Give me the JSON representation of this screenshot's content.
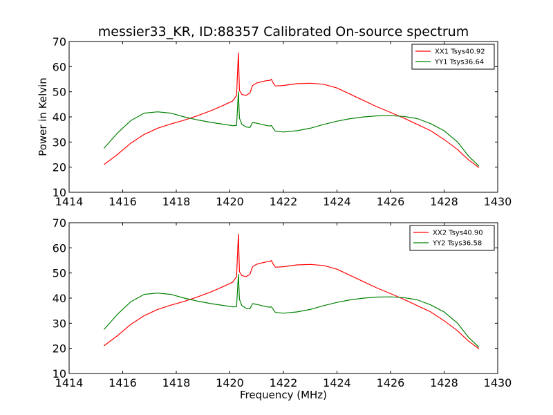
{
  "figure_title": "messier33_KR, ID:88357 Calibrated On-source spectrum",
  "chart_data": [
    {
      "type": "line",
      "title": "messier33_KR, ID:88357 Calibrated On-source spectrum",
      "xlabel": "",
      "ylabel": "Power in Kelvin",
      "xlim": [
        1414,
        1430
      ],
      "ylim": [
        10,
        70
      ],
      "xticks": [
        "1414",
        "1416",
        "1418",
        "1420",
        "1422",
        "1424",
        "1426",
        "1428",
        "1430"
      ],
      "yticks": [
        "10",
        "20",
        "30",
        "40",
        "50",
        "60",
        "70"
      ],
      "grid": false,
      "legend_position": "top-right",
      "series": [
        {
          "name": "XX1 Tsys40.92",
          "color": "#ff0000",
          "x": [
            1415.3,
            1415.8,
            1416.3,
            1416.8,
            1417.3,
            1417.8,
            1418.3,
            1418.8,
            1419.3,
            1419.8,
            1420.1,
            1420.25,
            1420.32,
            1420.36,
            1420.45,
            1420.6,
            1420.75,
            1420.85,
            1421.0,
            1421.2,
            1421.4,
            1421.5,
            1421.55,
            1421.62,
            1421.7,
            1422.0,
            1422.5,
            1423.0,
            1423.5,
            1424.0,
            1424.5,
            1425.0,
            1425.5,
            1426.0,
            1426.5,
            1427.0,
            1427.5,
            1428.0,
            1428.5,
            1428.9,
            1429.3
          ],
          "y": [
            21.0,
            25.0,
            29.5,
            33.0,
            35.5,
            37.2,
            38.7,
            40.5,
            42.5,
            44.8,
            46.3,
            48.5,
            65.5,
            50.5,
            49.0,
            48.5,
            49.5,
            52.5,
            53.5,
            54.0,
            54.5,
            54.5,
            55.0,
            53.5,
            52.3,
            52.5,
            53.2,
            53.4,
            53.0,
            51.5,
            49.0,
            46.5,
            44.0,
            41.8,
            39.5,
            37.0,
            34.5,
            31.0,
            27.0,
            23.0,
            19.8
          ]
        },
        {
          "name": "YY1 Tsys36.64",
          "color": "#008000",
          "x": [
            1415.3,
            1415.8,
            1416.3,
            1416.8,
            1417.3,
            1417.8,
            1418.3,
            1418.8,
            1419.3,
            1419.8,
            1420.1,
            1420.25,
            1420.32,
            1420.36,
            1420.45,
            1420.6,
            1420.75,
            1420.85,
            1421.0,
            1421.2,
            1421.4,
            1421.5,
            1421.55,
            1421.62,
            1421.7,
            1422.0,
            1422.5,
            1423.0,
            1423.5,
            1424.0,
            1424.5,
            1425.0,
            1425.5,
            1426.0,
            1426.5,
            1427.0,
            1427.5,
            1428.0,
            1428.5,
            1428.9,
            1429.3
          ],
          "y": [
            27.5,
            33.5,
            38.5,
            41.5,
            42.0,
            41.5,
            40.0,
            38.8,
            37.8,
            37.0,
            36.5,
            36.6,
            50.0,
            39.5,
            37.0,
            36.0,
            35.8,
            37.8,
            37.5,
            37.0,
            36.5,
            36.4,
            36.6,
            35.5,
            34.3,
            34.0,
            34.5,
            35.5,
            37.0,
            38.3,
            39.3,
            40.0,
            40.4,
            40.5,
            40.2,
            39.3,
            37.3,
            34.5,
            30.0,
            24.5,
            20.4
          ]
        }
      ]
    },
    {
      "type": "line",
      "title": "",
      "xlabel": "Frequency (MHz)",
      "ylabel": "",
      "xlim": [
        1414,
        1430
      ],
      "ylim": [
        10,
        70
      ],
      "xticks": [
        "1414",
        "1416",
        "1418",
        "1420",
        "1422",
        "1424",
        "1426",
        "1428",
        "1430"
      ],
      "yticks": [
        "10",
        "20",
        "30",
        "40",
        "50",
        "60",
        "70"
      ],
      "grid": false,
      "legend_position": "top-right",
      "series": [
        {
          "name": "XX2 Tsys40.90",
          "color": "#ff0000",
          "x": [
            1415.3,
            1415.8,
            1416.3,
            1416.8,
            1417.3,
            1417.8,
            1418.3,
            1418.8,
            1419.3,
            1419.8,
            1420.1,
            1420.25,
            1420.32,
            1420.36,
            1420.45,
            1420.6,
            1420.75,
            1420.85,
            1421.0,
            1421.2,
            1421.4,
            1421.5,
            1421.55,
            1421.62,
            1421.7,
            1422.0,
            1422.5,
            1423.0,
            1423.5,
            1424.0,
            1424.5,
            1425.0,
            1425.5,
            1426.0,
            1426.5,
            1427.0,
            1427.5,
            1428.0,
            1428.5,
            1428.9,
            1429.3
          ],
          "y": [
            21.0,
            25.0,
            29.5,
            33.0,
            35.5,
            37.2,
            38.7,
            40.5,
            42.5,
            44.8,
            46.3,
            48.5,
            65.5,
            50.5,
            49.0,
            48.5,
            49.5,
            52.5,
            53.5,
            54.0,
            54.5,
            54.5,
            55.0,
            53.5,
            52.3,
            52.5,
            53.2,
            53.4,
            53.0,
            51.5,
            49.0,
            46.5,
            44.0,
            41.8,
            39.5,
            37.0,
            34.5,
            31.0,
            27.0,
            23.0,
            19.8
          ]
        },
        {
          "name": "YY2 Tsys36.58",
          "color": "#008000",
          "x": [
            1415.3,
            1415.8,
            1416.3,
            1416.8,
            1417.3,
            1417.8,
            1418.3,
            1418.8,
            1419.3,
            1419.8,
            1420.1,
            1420.25,
            1420.32,
            1420.36,
            1420.45,
            1420.6,
            1420.75,
            1420.85,
            1421.0,
            1421.2,
            1421.4,
            1421.5,
            1421.55,
            1421.62,
            1421.7,
            1422.0,
            1422.5,
            1423.0,
            1423.5,
            1424.0,
            1424.5,
            1425.0,
            1425.5,
            1426.0,
            1426.5,
            1427.0,
            1427.5,
            1428.0,
            1428.5,
            1428.9,
            1429.3
          ],
          "y": [
            27.5,
            33.5,
            38.5,
            41.5,
            42.0,
            41.5,
            40.0,
            38.8,
            37.8,
            37.0,
            36.5,
            36.6,
            49.5,
            39.5,
            37.0,
            36.0,
            35.8,
            37.8,
            37.5,
            37.0,
            36.5,
            36.4,
            36.6,
            35.5,
            34.3,
            34.0,
            34.5,
            35.5,
            37.0,
            38.3,
            39.3,
            40.0,
            40.4,
            40.5,
            40.2,
            39.3,
            37.3,
            34.5,
            30.0,
            24.5,
            20.4
          ]
        }
      ]
    }
  ]
}
